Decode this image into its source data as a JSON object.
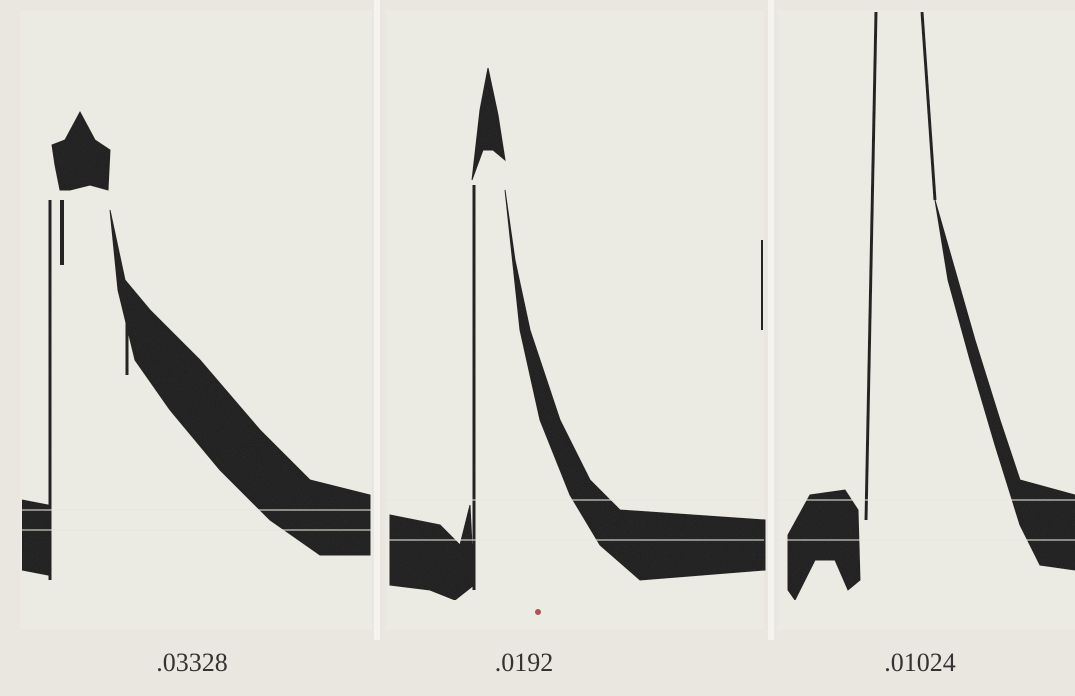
{
  "labels": [
    ".03328",
    ".0192",
    ".01024"
  ]
}
